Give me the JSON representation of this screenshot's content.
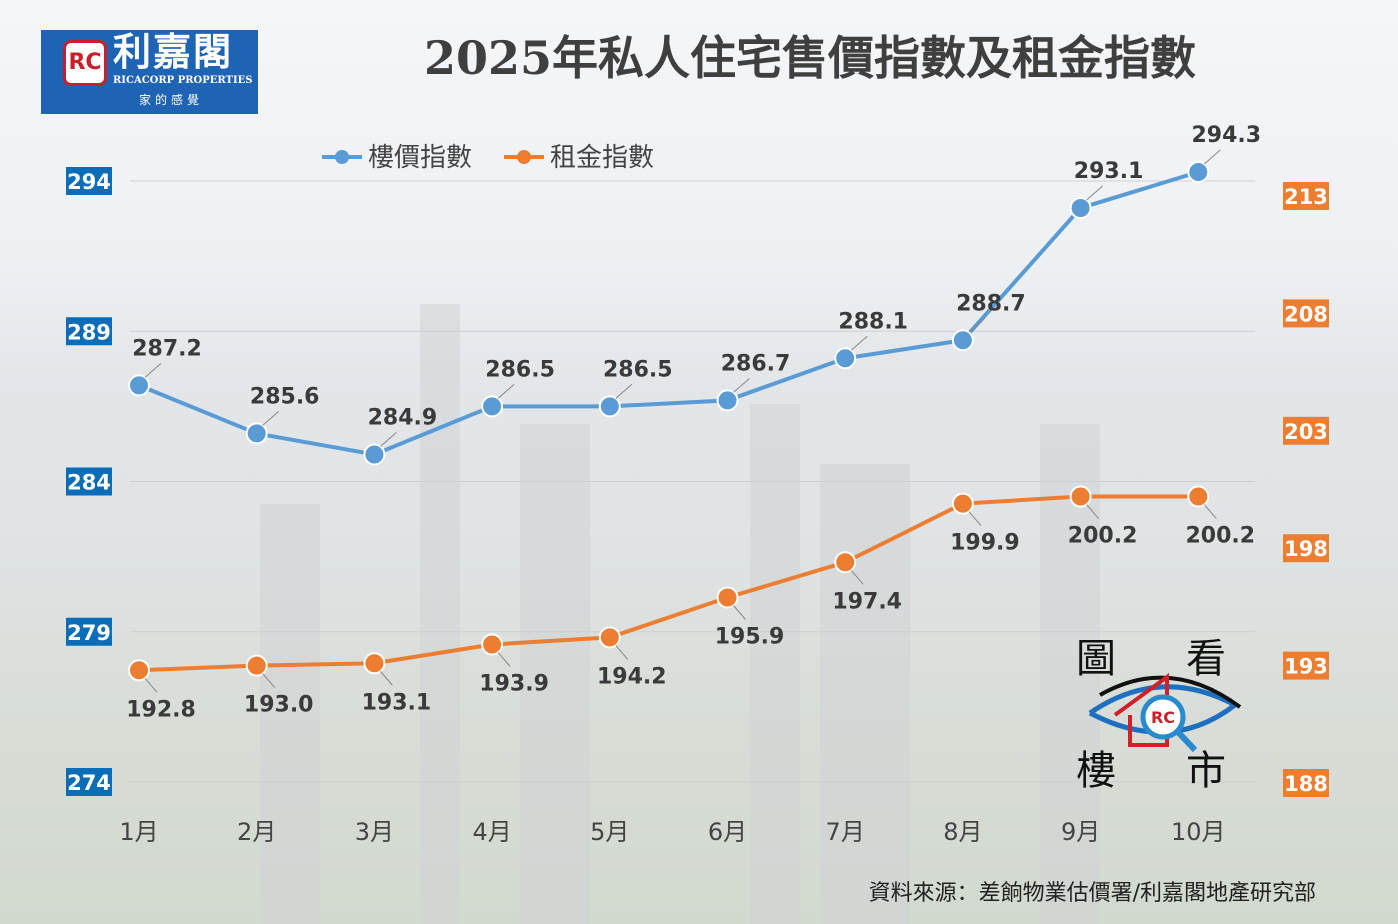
{
  "logo": {
    "brand_cn": "利嘉閣",
    "brand_en": "RICACORP PROPERTIES",
    "slogan": "家的感覺",
    "mark": "RC"
  },
  "title": "2025年私人住宅售價指數及租金指數",
  "source": "資料來源：差餉物業估價署/利嘉閣地產研究部",
  "watermark": {
    "chars": [
      "圖",
      "看",
      "樓",
      "市"
    ],
    "mark": "RC"
  },
  "chart_data": {
    "type": "line",
    "title": "2025年私人住宅售價指數及租金指數",
    "categories": [
      "1月",
      "2月",
      "3月",
      "4月",
      "5月",
      "6月",
      "7月",
      "8月",
      "9月",
      "10月"
    ],
    "series": [
      {
        "name": "樓價指數",
        "axis": "left",
        "color": "#5b9bd5",
        "values": [
          287.2,
          285.6,
          284.9,
          286.5,
          286.5,
          286.7,
          288.1,
          288.7,
          293.1,
          294.3
        ]
      },
      {
        "name": "租金指數",
        "axis": "right",
        "color": "#ed7d31",
        "values": [
          192.8,
          193.0,
          193.1,
          193.9,
          194.2,
          195.9,
          197.4,
          199.9,
          200.2,
          200.2
        ]
      }
    ],
    "left_axis": {
      "ylim": [
        274,
        294
      ],
      "ticks": [
        274,
        279,
        284,
        289,
        294
      ],
      "label_bg": "#0b6cb8"
    },
    "right_axis": {
      "ylim": [
        188,
        213
      ],
      "ticks": [
        188,
        193,
        198,
        203,
        208,
        213
      ],
      "label_bg": "#ed7d31"
    },
    "legend": "top-center",
    "grid": true
  }
}
